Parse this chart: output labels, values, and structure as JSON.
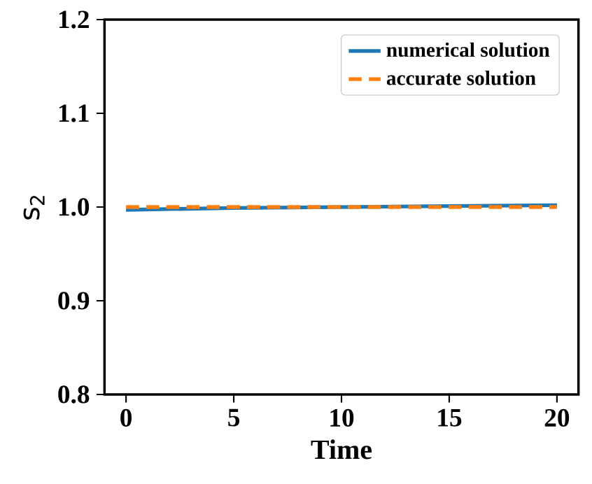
{
  "chart_data": {
    "type": "line",
    "xlabel": "Time",
    "ylabel": "s$_{2}$",
    "x": [
      0,
      5,
      10,
      15,
      20
    ],
    "series": [
      {
        "name": "numerical solution",
        "color": "#1f77b4",
        "line_style": "solid",
        "values": [
          0.997,
          0.999,
          1.0,
          1.001,
          1.002
        ]
      },
      {
        "name": "accurate solution",
        "color": "#ff7f0e",
        "line_style": "dashed",
        "values": [
          1.0,
          1.0,
          1.0,
          1.0,
          1.0
        ]
      }
    ],
    "xlim": [
      -1,
      21
    ],
    "ylim": [
      0.8,
      1.2
    ],
    "xticks": [
      0,
      5,
      10,
      15,
      20
    ],
    "yticks": [
      0.8,
      0.9,
      {
        "value": 1.0,
        "label": "1.0"
      },
      1.1,
      1.2
    ],
    "grid": false,
    "legend": "top right",
    "marker": "none"
  }
}
